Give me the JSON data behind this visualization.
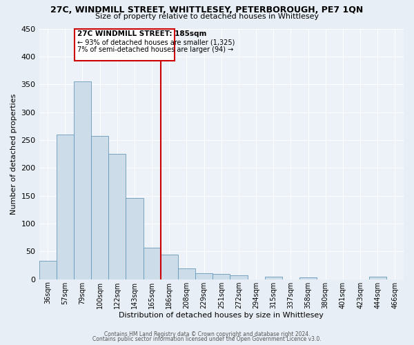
{
  "title_line1": "27C, WINDMILL STREET, WHITTLESEY, PETERBOROUGH, PE7 1QN",
  "title_line2": "Size of property relative to detached houses in Whittlesey",
  "xlabel": "Distribution of detached houses by size in Whittlesey",
  "ylabel": "Number of detached properties",
  "bar_labels": [
    "36sqm",
    "57sqm",
    "79sqm",
    "100sqm",
    "122sqm",
    "143sqm",
    "165sqm",
    "186sqm",
    "208sqm",
    "229sqm",
    "251sqm",
    "272sqm",
    "294sqm",
    "315sqm",
    "337sqm",
    "358sqm",
    "380sqm",
    "401sqm",
    "423sqm",
    "444sqm",
    "466sqm"
  ],
  "bar_values": [
    33,
    260,
    355,
    257,
    225,
    146,
    57,
    44,
    20,
    11,
    10,
    7,
    0,
    5,
    0,
    3,
    0,
    0,
    0,
    4,
    0
  ],
  "bar_color": "#ccdce8",
  "bar_edge_color": "#6699bb",
  "vline_index": 7,
  "vline_color": "#cc0000",
  "ylim": [
    0,
    450
  ],
  "yticks": [
    0,
    50,
    100,
    150,
    200,
    250,
    300,
    350,
    400,
    450
  ],
  "annotation_title": "27C WINDMILL STREET: 185sqm",
  "annotation_line1": "← 93% of detached houses are smaller (1,325)",
  "annotation_line2": "7% of semi-detached houses are larger (94) →",
  "annotation_box_color": "#ffffff",
  "annotation_box_edge": "#cc0000",
  "footer_line1": "Contains HM Land Registry data © Crown copyright and database right 2024.",
  "footer_line2": "Contains public sector information licensed under the Open Government Licence v3.0.",
  "bg_color": "#e8eef5",
  "plot_bg_color": "#edf2f8"
}
